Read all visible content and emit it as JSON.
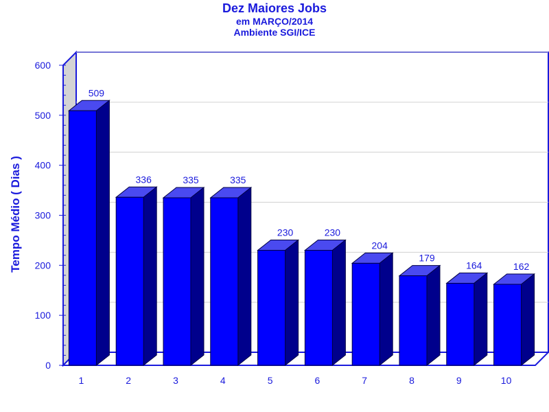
{
  "chart_data": {
    "type": "bar",
    "title": "Dez Maiores Jobs",
    "subtitle_lines": [
      "em MARÇO/2014",
      "Ambiente SGI/ICE"
    ],
    "xlabel": "",
    "ylabel": "Tempo Médio ( Dias )",
    "categories": [
      "1",
      "2",
      "3",
      "4",
      "5",
      "6",
      "7",
      "8",
      "9",
      "10"
    ],
    "values": [
      509,
      336,
      335,
      335,
      230,
      230,
      204,
      179,
      164,
      162
    ],
    "ylim": [
      0,
      600
    ],
    "yticks": [
      0,
      100,
      200,
      300,
      400,
      500,
      600
    ],
    "grid": true,
    "colors": {
      "bar_front": "#0000ff",
      "bar_top": "#4a4af0",
      "bar_side": "#00008c",
      "axis": "#1a1adc",
      "back_wall": "#d4d4d4",
      "grid": "#d0d0d0"
    }
  }
}
